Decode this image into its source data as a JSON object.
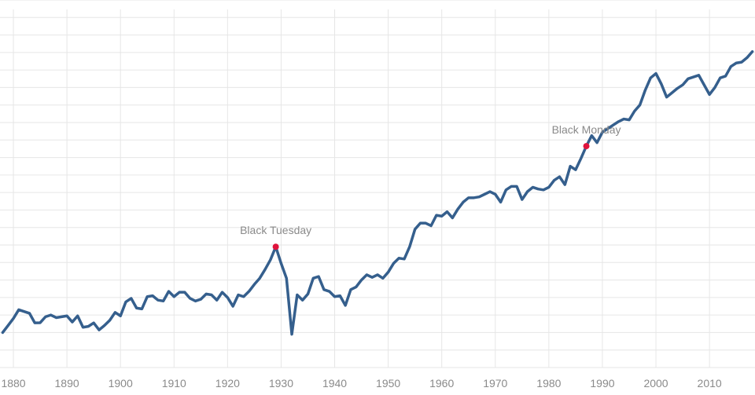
{
  "chart_data": {
    "type": "line",
    "title": "",
    "xlabel": "",
    "ylabel": "",
    "xlim": [
      1877.5,
      2018.5
    ],
    "ylim": [
      0,
      21
    ],
    "grid": "on",
    "x_ticks": [
      1880,
      1890,
      1900,
      1910,
      1920,
      1930,
      1940,
      1950,
      1960,
      1970,
      1980,
      1990,
      2000,
      2010
    ],
    "line_color": "#355f8d",
    "marker_color": "#e0133c",
    "series": [
      {
        "x": [
          1878,
          1879,
          1880,
          1881,
          1882,
          1883,
          1884,
          1885,
          1886,
          1887,
          1888,
          1889,
          1890,
          1891,
          1892,
          1893,
          1894,
          1895,
          1896,
          1897,
          1898,
          1899,
          1900,
          1901,
          1902,
          1903,
          1904,
          1905,
          1906,
          1907,
          1908,
          1909,
          1910,
          1911,
          1912,
          1913,
          1914,
          1915,
          1916,
          1917,
          1918,
          1919,
          1920,
          1921,
          1922,
          1923,
          1924,
          1925,
          1926,
          1927,
          1928,
          1929,
          1930,
          1931,
          1932,
          1933,
          1934,
          1935,
          1936,
          1937,
          1938,
          1939,
          1940,
          1941,
          1942,
          1943,
          1944,
          1945,
          1946,
          1947,
          1948,
          1949,
          1950,
          1951,
          1952,
          1953,
          1954,
          1955,
          1956,
          1957,
          1958,
          1959,
          1960,
          1961,
          1962,
          1963,
          1964,
          1965,
          1966,
          1967,
          1968,
          1969,
          1970,
          1971,
          1972,
          1973,
          1974,
          1975,
          1976,
          1977,
          1978,
          1979,
          1980,
          1981,
          1982,
          1983,
          1984,
          1985,
          1986,
          1987,
          1988,
          1989,
          1990,
          1991,
          1992,
          1993,
          1994,
          1995,
          1996,
          1997,
          1998,
          1999,
          2000,
          2001,
          2002,
          2003,
          2004,
          2005,
          2006,
          2007,
          2008,
          2009,
          2010,
          2011,
          2012,
          2013,
          2014,
          2015,
          2016,
          2017,
          2018
        ],
        "values": [
          2.0,
          2.4,
          2.8,
          3.3,
          3.2,
          3.1,
          2.55,
          2.56,
          2.9,
          3.0,
          2.85,
          2.9,
          2.95,
          2.6,
          2.95,
          2.3,
          2.35,
          2.55,
          2.15,
          2.4,
          2.7,
          3.15,
          2.95,
          3.75,
          3.95,
          3.4,
          3.35,
          4.05,
          4.1,
          3.85,
          3.8,
          4.35,
          4.05,
          4.3,
          4.3,
          3.95,
          3.8,
          3.9,
          4.2,
          4.15,
          3.85,
          4.3,
          4.0,
          3.5,
          4.15,
          4.05,
          4.35,
          4.75,
          5.1,
          5.6,
          6.15,
          6.9,
          5.95,
          5.1,
          1.9,
          4.15,
          3.85,
          4.2,
          5.1,
          5.2,
          4.45,
          4.35,
          4.05,
          4.1,
          3.55,
          4.45,
          4.6,
          5.0,
          5.3,
          5.15,
          5.3,
          5.1,
          5.45,
          5.95,
          6.25,
          6.2,
          6.9,
          7.9,
          8.25,
          8.25,
          8.1,
          8.7,
          8.65,
          8.9,
          8.55,
          9.05,
          9.45,
          9.7,
          9.7,
          9.75,
          9.9,
          10.05,
          9.9,
          9.45,
          10.15,
          10.35,
          10.35,
          9.6,
          10.05,
          10.3,
          10.2,
          10.15,
          10.3,
          10.7,
          10.9,
          10.45,
          11.5,
          11.3,
          11.95,
          12.65,
          13.25,
          12.85,
          13.45,
          13.65,
          13.85,
          14.05,
          14.2,
          14.15,
          14.65,
          15.0,
          15.85,
          16.55,
          16.8,
          16.2,
          15.45,
          15.7,
          15.95,
          16.15,
          16.5,
          16.6,
          16.7,
          16.15,
          15.6,
          16.0,
          16.55,
          16.65,
          17.2,
          17.4,
          17.45,
          17.7,
          18.05
        ],
        "annotations": [
          {
            "x": 1929,
            "y": 6.9,
            "label": "Black Tuesday"
          },
          {
            "x": 1987,
            "y": 12.65,
            "label": "Black Monday"
          }
        ]
      }
    ]
  }
}
